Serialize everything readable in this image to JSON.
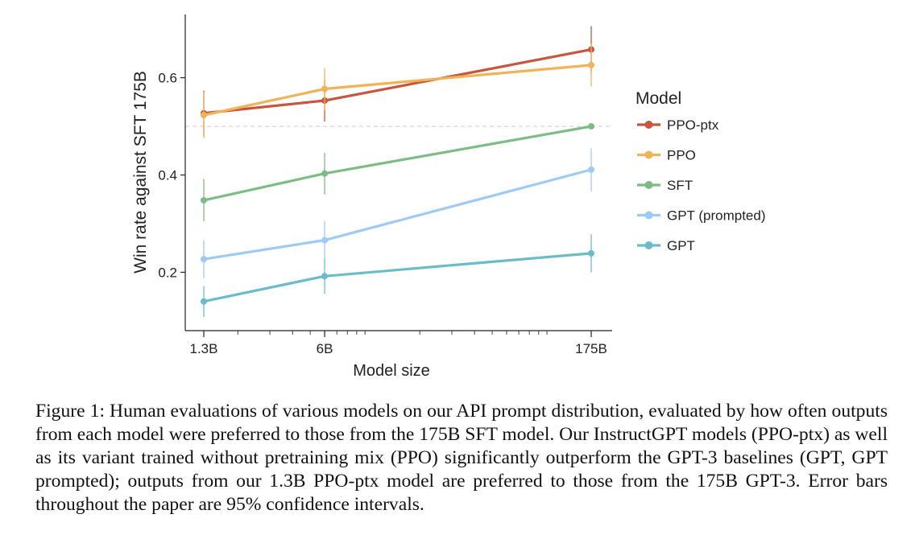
{
  "chart_data": {
    "type": "line",
    "title": "",
    "xlabel": "Model size",
    "ylabel": "Win rate against SFT 175B",
    "x_scale": "log",
    "categories": [
      "1.3B",
      "6B",
      "175B"
    ],
    "x": [
      1.3,
      6,
      175
    ],
    "ylim": [
      0.08,
      0.73
    ],
    "yticks": [
      0.2,
      0.4,
      0.6
    ],
    "ytick_labels": [
      "0.2",
      "0.4",
      "0.6"
    ],
    "reference_line": 0.5,
    "grid": false,
    "legend_title": "Model",
    "legend_position": "right",
    "series": [
      {
        "name": "PPO-ptx",
        "color": "#c8553d",
        "values": [
          0.527,
          0.553,
          0.658
        ],
        "ci_low": [
          0.48,
          0.51,
          0.61
        ],
        "ci_high": [
          0.573,
          0.597,
          0.706
        ]
      },
      {
        "name": "PPO",
        "color": "#f0b357",
        "values": [
          0.523,
          0.577,
          0.626
        ],
        "ci_low": [
          0.476,
          0.533,
          0.582
        ],
        "ci_high": [
          0.57,
          0.62,
          0.67
        ]
      },
      {
        "name": "SFT",
        "color": "#7bbd83",
        "values": [
          0.348,
          0.403,
          0.5
        ],
        "ci_low": [
          0.305,
          0.36,
          0.5
        ],
        "ci_high": [
          0.392,
          0.446,
          0.5
        ]
      },
      {
        "name": "GPT (prompted)",
        "color": "#9ecbf5",
        "values": [
          0.227,
          0.266,
          0.411
        ],
        "ci_low": [
          0.188,
          0.226,
          0.366
        ],
        "ci_high": [
          0.266,
          0.306,
          0.455
        ]
      },
      {
        "name": "GPT",
        "color": "#6bbcc9",
        "values": [
          0.14,
          0.192,
          0.239
        ],
        "ci_low": [
          0.108,
          0.156,
          0.2
        ],
        "ci_high": [
          0.172,
          0.228,
          0.278
        ]
      }
    ]
  },
  "caption": {
    "label": "Figure 1: ",
    "text": "Human evaluations of various models on our API prompt distribution, evaluated by how often outputs from each model were preferred to those from the 175B SFT model. Our InstructGPT models (PPO-ptx) as well as its variant trained without pretraining mix (PPO) significantly outperform the GPT-3 baselines (GPT, GPT prompted); outputs from our 1.3B PPO-ptx model are preferred to those from the 175B GPT-3. Error bars throughout the paper are 95% confidence intervals."
  }
}
